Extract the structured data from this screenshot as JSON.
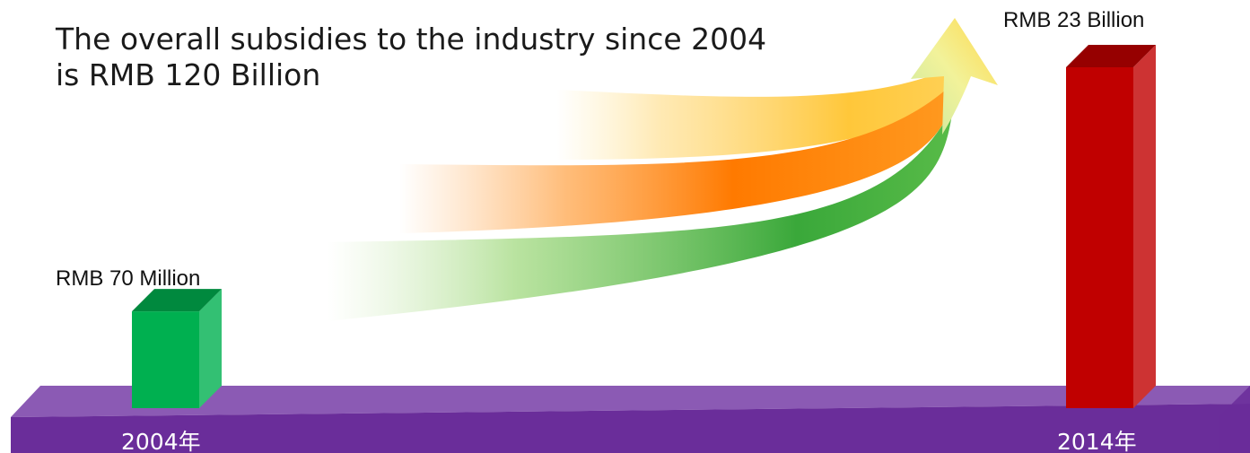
{
  "headline": {
    "line1": "The overall subsidies to the industry since 2004",
    "line2": "is RMB 120 Billion"
  },
  "colors": {
    "base_top": "#8b5ab4",
    "base_front": "#6a2d9a",
    "bar_2004": "#00b050",
    "bar_2014": "#c00000",
    "arrow_yellow": "#ffc000",
    "arrow_orange": "#ff7f00",
    "arrow_green": "#2e9c2a"
  },
  "chart_data": {
    "type": "bar",
    "categories": [
      "2004年",
      "2014年"
    ],
    "values": [
      0.07,
      23
    ],
    "value_unit": "Billion RMB",
    "data_labels": [
      "RMB 70 Million",
      "RMB 23 Billion"
    ],
    "title": "",
    "xlabel": "",
    "ylabel": "",
    "ylim": [
      0,
      23
    ],
    "grid": false,
    "legend": "none"
  }
}
